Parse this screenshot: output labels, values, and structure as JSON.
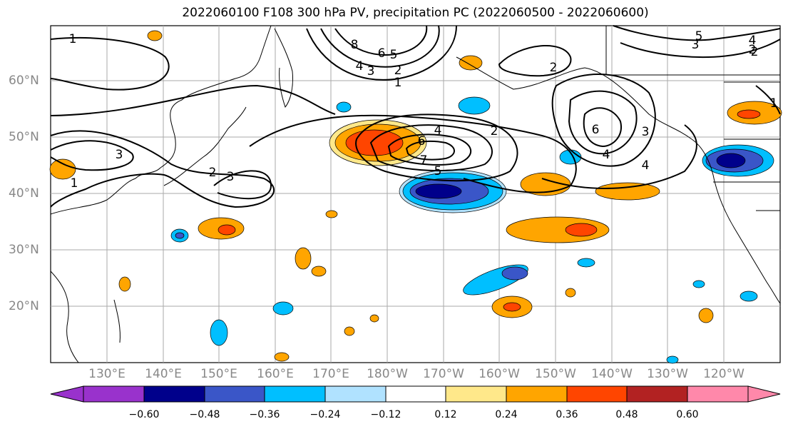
{
  "title": "2022060100 F108 300 hPa PV, precipitation PC (2022060500 - 2022060600)",
  "lat_labels": [
    "60°N",
    "50°N",
    "40°N",
    "30°N",
    "20°N"
  ],
  "lon_labels": [
    "130°E",
    "140°E",
    "150°E",
    "160°E",
    "170°E",
    "180°W",
    "170°W",
    "160°W",
    "150°W",
    "140°W",
    "130°W",
    "120°W"
  ],
  "colorbar": {
    "ticks": [
      "−0.60",
      "−0.48",
      "−0.36",
      "−0.24",
      "−0.12",
      "0.12",
      "0.24",
      "0.36",
      "0.48",
      "0.60"
    ],
    "colors": [
      "#9932cc",
      "#00008b",
      "#3a56c8",
      "#00bfff",
      "#b0e2ff",
      "#ffffff",
      "#ffe88a",
      "#ffa500",
      "#ff4500",
      "#b22222",
      "#ff88aa"
    ]
  },
  "contour_labels": [
    "1",
    "8",
    "6",
    "5",
    "4",
    "3",
    "2",
    "1",
    "2",
    "5",
    "4",
    "3",
    "2",
    "3",
    "2",
    "1",
    "6",
    "4",
    "5",
    "7",
    "2",
    "3",
    "6",
    "4",
    "4",
    "1",
    "2",
    "3"
  ]
}
